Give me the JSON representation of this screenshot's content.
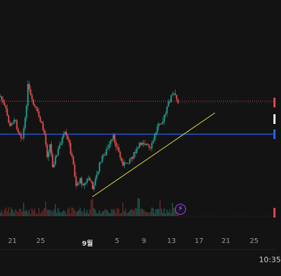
{
  "time_axis": {
    "ticks": [
      {
        "label": "21",
        "month": false
      },
      {
        "label": "25",
        "month": false
      },
      {
        "label": "9월",
        "month": true
      },
      {
        "label": "5",
        "month": false
      },
      {
        "label": "9",
        "month": false
      },
      {
        "label": "13",
        "month": false
      },
      {
        "label": "17",
        "month": false
      },
      {
        "label": "21",
        "month": false
      },
      {
        "label": "25",
        "month": false
      }
    ]
  },
  "clock": "10:35",
  "colors": {
    "up": "#26a69a",
    "down": "#ef5350",
    "resistance_line": "#e0484e",
    "support_line": "#2962ff",
    "trend_line": "#e6e04a",
    "accent": "#9c4ee8"
  },
  "icons": {
    "alert_button": "lightning-bolt-icon"
  }
}
